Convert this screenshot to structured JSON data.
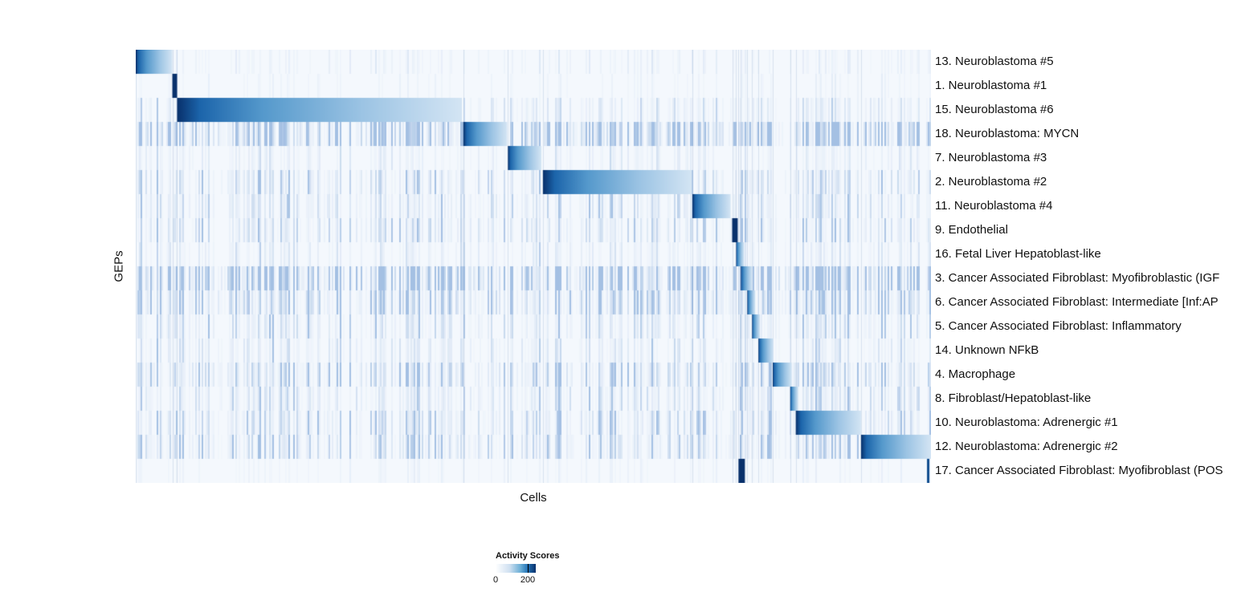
{
  "chart_data": {
    "type": "heatmap",
    "title": "",
    "xlabel": "Cells",
    "ylabel": "GEPs",
    "legend": {
      "title": "Activity Scores",
      "min_label": "0",
      "max_label": "200"
    },
    "colors": {
      "low": "#f7fbff",
      "mid": "#4292c6",
      "high": "#08306b",
      "background": "#f4f8fd"
    },
    "value_range": [
      0,
      200
    ],
    "rows": [
      {
        "label": "13. Neuroblastoma #5",
        "block_start": 0.0,
        "block_end": 0.046
      },
      {
        "label": "1. Neuroblastoma #1",
        "block_start": 0.046,
        "block_end": 0.052
      },
      {
        "label": "15. Neuroblastoma #6",
        "block_start": 0.052,
        "block_end": 0.41
      },
      {
        "label": "18. Neuroblastoma: MYCN",
        "block_start": 0.412,
        "block_end": 0.467
      },
      {
        "label": "7. Neuroblastoma #3",
        "block_start": 0.468,
        "block_end": 0.51
      },
      {
        "label": "2. Neuroblastoma #2",
        "block_start": 0.512,
        "block_end": 0.699
      },
      {
        "label": "11. Neuroblastoma #4",
        "block_start": 0.7,
        "block_end": 0.748
      },
      {
        "label": "9. Endothelial",
        "block_start": 0.75,
        "block_end": 0.757
      },
      {
        "label": "16. Fetal Liver Hepatoblast-like",
        "block_start": 0.755,
        "block_end": 0.765
      },
      {
        "label": "3. Cancer Associated Fibroblast: Myofibroblastic (IGF",
        "block_start": 0.761,
        "block_end": 0.775
      },
      {
        "label": "6. Cancer Associated Fibroblast: Intermediate [Inf:AP",
        "block_start": 0.769,
        "block_end": 0.779
      },
      {
        "label": "5. Cancer Associated Fibroblast: Inflammatory",
        "block_start": 0.775,
        "block_end": 0.785
      },
      {
        "label": "14. Unknown NFkB",
        "block_start": 0.783,
        "block_end": 0.802
      },
      {
        "label": "4. Macrophage",
        "block_start": 0.801,
        "block_end": 0.825
      },
      {
        "label": "8. Fibroblast/Hepatoblast-like",
        "block_start": 0.823,
        "block_end": 0.833
      },
      {
        "label": "10. Neuroblastoma: Adrenergic #1",
        "block_start": 0.83,
        "block_end": 0.912
      },
      {
        "label": "12. Neuroblastoma: Adrenergic #2",
        "block_start": 0.912,
        "block_end": 1.0
      },
      {
        "label": "17. Cancer Associated Fibroblast: Myofibroblast (POS",
        "block_start": 0.758,
        "block_end": 0.766,
        "marks": [
          0.995
        ]
      }
    ]
  }
}
